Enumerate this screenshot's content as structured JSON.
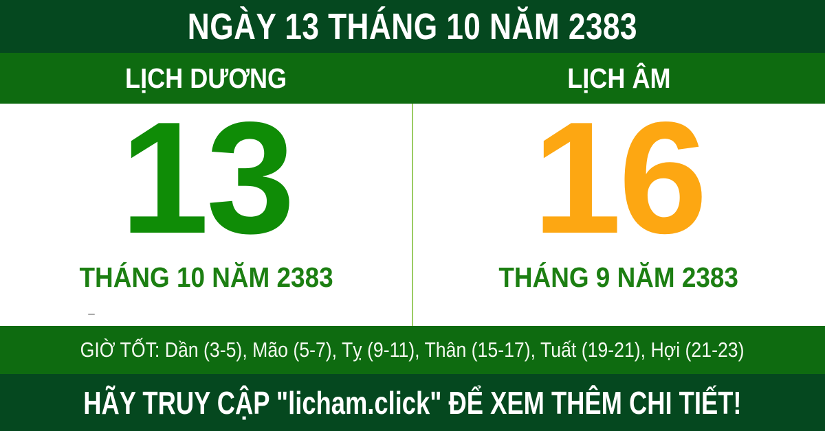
{
  "title_bar": {
    "text": "NGÀY 13 THÁNG 10 NĂM 2383"
  },
  "calendar": {
    "solar": {
      "header": "LỊCH DƯƠNG",
      "day": "13",
      "month_year": "THÁNG 10 NĂM 2383"
    },
    "lunar": {
      "header": "LỊCH ÂM",
      "day": "16",
      "month_year": "THÁNG 9 NĂM 2383"
    }
  },
  "good_hours": {
    "text": "GIỜ TỐT: Dần (3-5), Mão (5-7), Tỵ (9-11), Thân (15-17), Tuất (19-21), Hợi (21-23)"
  },
  "footer": {
    "text": "HÃY TRUY CẬP \"licham.click\" ĐỂ XEM THÊM CHI TIẾT!"
  },
  "colors": {
    "dark_green_bar": "#05481f",
    "medium_green_bar": "#0e6b10",
    "solar_day_green": "#0f8c06",
    "lunar_day_orange": "#fda712",
    "month_label_green": "#1c7f12",
    "divider_light_green": "#9bcb63",
    "text_white": "#ffffff"
  }
}
